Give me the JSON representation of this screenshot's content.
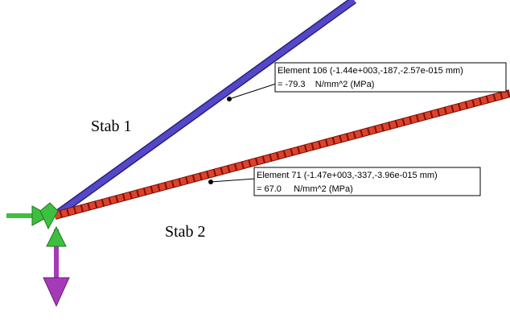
{
  "labels": {
    "stab1": "Stab 1",
    "stab2": "Stab 2"
  },
  "callouts": [
    {
      "line1": "Element 106 (-1.44e+003,-187,-2.57e-015 mm)",
      "line2": "= -79.3    N/mm^2 (MPa)"
    },
    {
      "line1": "Element 71 (-1.47e+003,-337,-3.96e-015 mm)",
      "line2": "= 67.0     N/mm^2 (MPa)"
    }
  ]
}
